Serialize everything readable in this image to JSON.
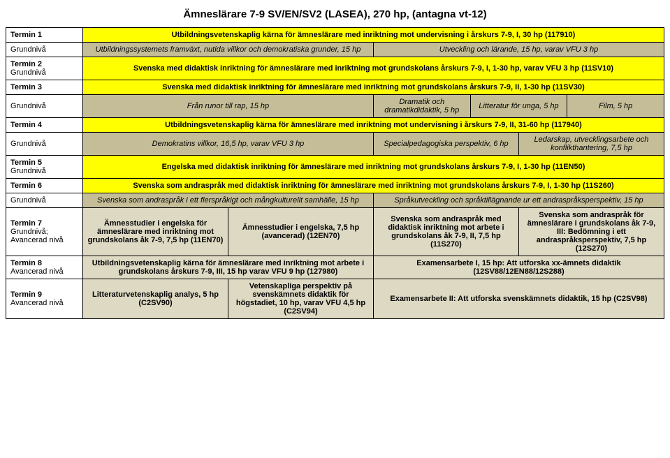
{
  "title": "Ämneslärare 7-9 SV/EN/SV2 (LASEA), 270 hp, (antagna vt-12)",
  "t1": {
    "label": "Termin 1",
    "level": "Grundnivå",
    "row1": "Utbildningsvetenskaplig kärna för ämneslärare med inriktning mot undervisning i årskurs 7-9, I, 30 hp (117910)",
    "row2a": "Utbildningssystemets framväxt, nutida villkor och demokratiska grunder, 15 hp",
    "row2b": "Utveckling och lärande, 15 hp, varav VFU 3 hp"
  },
  "t2": {
    "label": "Termin 2",
    "level": "Grundnivå",
    "row": "Svenska med didaktisk inriktning för ämneslärare med inriktning mot grundskolans årskurs 7-9, I, 1-30 hp, varav VFU 3 hp (11SV10)"
  },
  "t3": {
    "label": "Termin 3",
    "level": "Grundnivå",
    "row1": "Svenska med didaktisk inriktning för ämneslärare med inriktning mot grundskolans årskurs 7-9, II, 1-30 hp (11SV30)",
    "a": "Från runor till rap, 15 hp",
    "b": "Dramatik och dramatikdidaktik, 5 hp",
    "c": "Litteratur för unga, 5 hp",
    "d": "Film, 5 hp"
  },
  "t4": {
    "label": "Termin 4",
    "level": "Grundnivå",
    "row1": "Utbildningsvetenskaplig kärna för ämneslärare med inriktning mot undervisning i årskurs 7-9, II, 31-60 hp (117940)",
    "a": "Demokratins villkor, 16,5 hp, varav VFU 3 hp",
    "b": "Specialpedagogiska perspektiv, 6 hp",
    "c": "Ledarskap, utvecklingsarbete och konflikthantering, 7,5 hp"
  },
  "t5": {
    "label": "Termin 5",
    "level": "Grundnivå",
    "row": "Engelska med didaktisk inriktning för ämneslärare med inriktning mot grundskolans årskurs 7-9, I, 1-30 hp (11EN50)"
  },
  "t6": {
    "label": "Termin 6",
    "level": "Grundnivå",
    "row1": "Svenska som andraspråk med didaktisk inriktning för ämneslärare med inriktning mot grundskolans årskurs 7-9, I, 1-30 hp (11S260)",
    "a": "Svenska som andraspråk i ett flerspråkigt och mångkulturellt samhälle, 15 hp",
    "b": "Språkutveckling och språktillägnande ur ett andraspråksperspektiv, 15 hp"
  },
  "t7": {
    "label": "Termin 7",
    "level": "Grundnivå; Avancerad nivå",
    "a": "Ämnesstudier i engelska för ämneslärare med inriktning mot grundskolans åk 7-9, 7,5 hp (11EN70)",
    "b": "Ämnesstudier i engelska, 7,5 hp (avancerad) (12EN70)",
    "c": "Svenska som andraspråk med didaktisk inriktning mot arbete i grundskolans åk 7-9, II, 7,5 hp (11S270)",
    "d": "Svenska som andraspråk för ämneslärare i grundskolans åk 7-9, III: Bedömning i ett andraspråksperspektiv, 7,5 hp (12S270)"
  },
  "t8": {
    "label": "Termin 8",
    "level": "Avancerad nivå",
    "a": "Utbildningsvetenskaplig kärna för ämneslärare med inriktning mot arbete i grundskolans årskurs 7-9, III, 15 hp varav VFU 9 hp (127980)",
    "b": "Examensarbete I, 15 hp: Att utforska xx-ämnets didaktik (12SV88/12EN88/12S288)"
  },
  "t9": {
    "label": "Termin 9",
    "level": "Avancerad nivå",
    "a": "Litteraturvetenskaplig analys, 5 hp (C2SV90)",
    "b": "Vetenskapliga perspektiv på svenskämnets didaktik för högstadiet, 10 hp, varav VFU 4,5 hp (C2SV94)",
    "c": "Examensarbete II: Att utforska svenskämnets didaktik, 15 hp (C2SV98)"
  }
}
